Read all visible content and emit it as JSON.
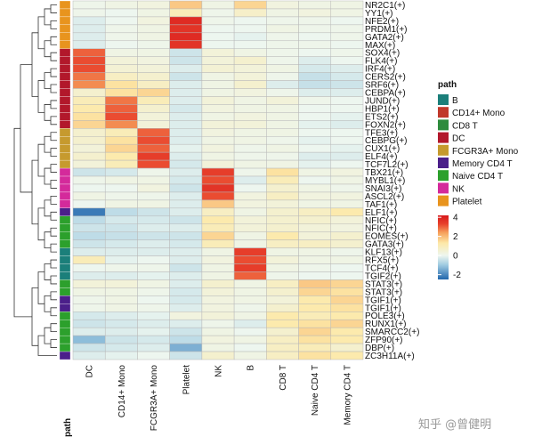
{
  "chart_data": {
    "type": "heatmap",
    "title": "",
    "columns": [
      "DC",
      "CD14+ Mono",
      "FCGR3A+ Mono",
      "Platelet",
      "NK",
      "B",
      "CD8 T",
      "Naive CD4 T",
      "Memory CD4 T"
    ],
    "rows": [
      "NR2C1(+)",
      "YY1(+)",
      "NFE2(+)",
      "PRDM1(+)",
      "GATA2(+)",
      "MAX(+)",
      "SOX4(+)",
      "FLK4(+)",
      "IRF4(+)",
      "CERS2(+)",
      "SRF6(+)",
      "CEBPA(+)",
      "JUND(+)",
      "HBP1(+)",
      "ETS2(+)",
      "FOXN2(+)",
      "TFE3(+)",
      "CEBPG(+)",
      "CUX1(+)",
      "ELF4(+)",
      "TCF7L2(+)",
      "TBX21(+)",
      "MYBL1(+)",
      "SNAI3(+)",
      "ASCL2(+)",
      "TAF1(+)",
      "ELF1(+)",
      "NFIC(+)",
      "NFIC(+)",
      "EOMES(+)",
      "GATA3(+)",
      "KLF13(+)",
      "RFX5(+)",
      "TCF4(+)",
      "TGIF2(+)",
      "STAT3(+)",
      "STAT3(+)",
      "TGIF1(+)",
      "TGIF1(+)",
      "POLE3(+)",
      "RUNX1(+)",
      "SMARCC2(+)",
      "ZFP90(+)",
      "DBP(+)",
      "ZC3H11A(+)"
    ],
    "row_path": [
      "Platelet",
      "Platelet",
      "Platelet",
      "Platelet",
      "Platelet",
      "Platelet",
      "DC",
      "DC",
      "DC",
      "DC",
      "DC",
      "DC",
      "DC",
      "DC",
      "DC",
      "DC",
      "FCGR3A+ Mono",
      "FCGR3A+ Mono",
      "FCGR3A+ Mono",
      "FCGR3A+ Mono",
      "FCGR3A+ Mono",
      "NK",
      "NK",
      "NK",
      "NK",
      "NK",
      "Memory CD4 T",
      "Naive CD4 T",
      "Naive CD4 T",
      "Naive CD4 T",
      "Naive CD4 T",
      "B",
      "B",
      "B",
      "B",
      "Naive CD4 T",
      "Naive CD4 T",
      "Memory CD4 T",
      "Memory CD4 T",
      "Naive CD4 T",
      "Naive CD4 T",
      "Naive CD4 T",
      "Naive CD4 T",
      "Naive CD4 T",
      "Memory CD4 T"
    ],
    "values": [
      [
        0.1,
        0.2,
        0.3,
        1.8,
        0.2,
        1.6,
        0.3,
        0.2,
        0.2
      ],
      [
        0.1,
        0.0,
        0.2,
        1.0,
        0.1,
        0.7,
        0.2,
        0.3,
        0.2
      ],
      [
        -0.2,
        0.0,
        0.3,
        3.8,
        0.1,
        0.0,
        0.1,
        0.1,
        0.0
      ],
      [
        -0.2,
        0.1,
        0.2,
        3.6,
        0.0,
        0.0,
        0.2,
        0.1,
        0.1
      ],
      [
        -0.2,
        0.1,
        0.2,
        3.8,
        0.0,
        -0.1,
        0.1,
        0.0,
        0.1
      ],
      [
        -0.2,
        0.0,
        0.1,
        3.6,
        0.0,
        0.0,
        0.1,
        0.1,
        0.0
      ],
      [
        3.0,
        0.2,
        0.2,
        -0.4,
        0.4,
        0.2,
        0.1,
        0.0,
        0.1
      ],
      [
        3.2,
        0.4,
        0.3,
        -0.4,
        0.4,
        0.6,
        0.1,
        -0.2,
        0.0
      ],
      [
        3.2,
        0.5,
        0.4,
        -0.2,
        0.5,
        0.4,
        0.2,
        -0.3,
        -0.2
      ],
      [
        2.8,
        0.8,
        0.6,
        -0.4,
        0.2,
        0.4,
        0.1,
        -0.5,
        -0.3
      ],
      [
        2.6,
        1.4,
        0.8,
        -0.2,
        0.2,
        0.6,
        -0.2,
        -0.5,
        -0.4
      ],
      [
        0.6,
        1.4,
        1.6,
        -0.2,
        0.2,
        0.3,
        0.1,
        -0.2,
        -0.2
      ],
      [
        1.0,
        2.8,
        1.0,
        -0.2,
        0.4,
        0.2,
        0.4,
        0.1,
        0.0
      ],
      [
        1.2,
        3.0,
        0.6,
        -0.3,
        0.3,
        0.2,
        0.2,
        0.0,
        0.0
      ],
      [
        1.4,
        3.2,
        0.4,
        -0.2,
        0.2,
        0.3,
        0.2,
        0.0,
        -0.1
      ],
      [
        1.6,
        2.6,
        0.4,
        -0.2,
        0.4,
        0.4,
        0.2,
        -0.1,
        -0.2
      ],
      [
        0.6,
        1.0,
        3.0,
        -0.2,
        0.3,
        0.2,
        0.2,
        0.0,
        0.0
      ],
      [
        0.6,
        1.4,
        3.2,
        -0.2,
        0.2,
        0.2,
        0.1,
        -0.1,
        0.0
      ],
      [
        0.4,
        1.6,
        3.0,
        -0.1,
        0.3,
        0.1,
        0.2,
        0.0,
        -0.1
      ],
      [
        0.6,
        1.2,
        3.4,
        -0.2,
        0.2,
        0.1,
        0.1,
        -0.2,
        -0.2
      ],
      [
        0.4,
        1.0,
        3.2,
        -0.3,
        0.4,
        0.2,
        0.2,
        -0.1,
        0.0
      ],
      [
        -0.4,
        -0.3,
        0.1,
        -0.2,
        3.4,
        0.1,
        1.4,
        0.2,
        0.3
      ],
      [
        0.1,
        0.2,
        0.2,
        -0.3,
        3.2,
        -0.2,
        1.0,
        0.0,
        0.2
      ],
      [
        0.0,
        0.0,
        0.3,
        -0.4,
        3.6,
        0.0,
        0.6,
        0.2,
        0.1
      ],
      [
        0.2,
        0.1,
        0.1,
        -0.2,
        3.2,
        0.3,
        0.8,
        0.3,
        0.3
      ],
      [
        0.0,
        0.2,
        0.2,
        -0.2,
        1.8,
        0.3,
        0.4,
        0.2,
        0.2
      ],
      [
        -2.2,
        -0.6,
        -0.4,
        -0.2,
        0.8,
        0.2,
        0.6,
        0.8,
        1.2
      ],
      [
        -0.6,
        -0.3,
        -0.3,
        -0.4,
        1.2,
        0.4,
        0.6,
        0.6,
        0.4
      ],
      [
        -0.4,
        -0.4,
        -0.2,
        -0.2,
        1.0,
        0.4,
        0.6,
        0.4,
        0.3
      ],
      [
        -0.6,
        -0.5,
        -0.4,
        -0.4,
        1.6,
        0.2,
        1.2,
        0.4,
        0.6
      ],
      [
        -0.4,
        -0.3,
        -0.2,
        -0.3,
        1.0,
        0.2,
        0.8,
        0.8,
        0.6
      ],
      [
        -0.2,
        -0.2,
        -0.2,
        -0.2,
        0.2,
        3.4,
        0.2,
        0.2,
        0.1
      ],
      [
        1.0,
        -0.1,
        0.0,
        -0.2,
        0.3,
        3.2,
        0.4,
        0.2,
        0.2
      ],
      [
        0.0,
        0.1,
        0.1,
        -0.4,
        0.2,
        3.4,
        0.2,
        0.1,
        0.0
      ],
      [
        -0.2,
        -0.2,
        -0.1,
        -0.2,
        0.2,
        3.0,
        0.1,
        0.0,
        0.0
      ],
      [
        0.4,
        0.4,
        0.2,
        -0.2,
        0.6,
        0.2,
        0.8,
        1.8,
        1.6
      ],
      [
        0.2,
        0.2,
        0.1,
        -0.3,
        0.4,
        0.2,
        0.6,
        1.6,
        1.4
      ],
      [
        0.1,
        0.2,
        0.0,
        -0.3,
        0.3,
        0.2,
        0.4,
        1.2,
        1.6
      ],
      [
        0.1,
        0.2,
        0.1,
        -0.2,
        0.3,
        0.1,
        0.6,
        1.2,
        1.4
      ],
      [
        -0.3,
        -0.2,
        -0.1,
        0.3,
        0.4,
        0.2,
        1.2,
        1.0,
        1.2
      ],
      [
        -0.4,
        -0.3,
        -0.2,
        -0.2,
        0.1,
        -0.2,
        1.2,
        1.4,
        1.6
      ],
      [
        -0.2,
        -0.2,
        -0.1,
        -0.4,
        0.2,
        0.0,
        0.6,
        1.6,
        1.2
      ],
      [
        -1.2,
        -0.4,
        -0.3,
        -0.6,
        0.3,
        0.2,
        0.8,
        1.4,
        1.2
      ],
      [
        -0.4,
        -0.3,
        -0.2,
        -1.4,
        0.2,
        0.0,
        0.8,
        1.0,
        0.6
      ],
      [
        -0.2,
        -0.1,
        0.0,
        -0.4,
        0.6,
        0.2,
        0.8,
        1.4,
        1.2
      ]
    ],
    "annotation_label": "path",
    "path_legend": {
      "title": "path",
      "items": [
        {
          "name": "B",
          "color": "#1b7f7a"
        },
        {
          "name": "CD14+ Mono",
          "color": "#c0392b"
        },
        {
          "name": "CD8 T",
          "color": "#2e8b3d"
        },
        {
          "name": "DC",
          "color": "#b2182b"
        },
        {
          "name": "FCGR3A+ Mono",
          "color": "#c69a2e"
        },
        {
          "name": "Memory CD4 T",
          "color": "#4b1f8a"
        },
        {
          "name": "Naive CD4 T",
          "color": "#2ca02c"
        },
        {
          "name": "NK",
          "color": "#d42a9b"
        },
        {
          "name": "Platelet",
          "color": "#e8941e"
        }
      ]
    },
    "color_scale": {
      "ticks": [
        4,
        2,
        0,
        -2
      ],
      "range": [
        -2.5,
        4.2
      ],
      "stops": [
        {
          "v": -2.5,
          "c": "#2166ac"
        },
        {
          "v": -1.0,
          "c": "#9ecae1"
        },
        {
          "v": 0.0,
          "c": "#edf6ef"
        },
        {
          "v": 1.3,
          "c": "#fde9a8"
        },
        {
          "v": 2.4,
          "c": "#f6a15b"
        },
        {
          "v": 3.3,
          "c": "#e8412c"
        },
        {
          "v": 4.2,
          "c": "#d7191c"
        }
      ]
    }
  },
  "watermark": "知乎 @曾健明"
}
